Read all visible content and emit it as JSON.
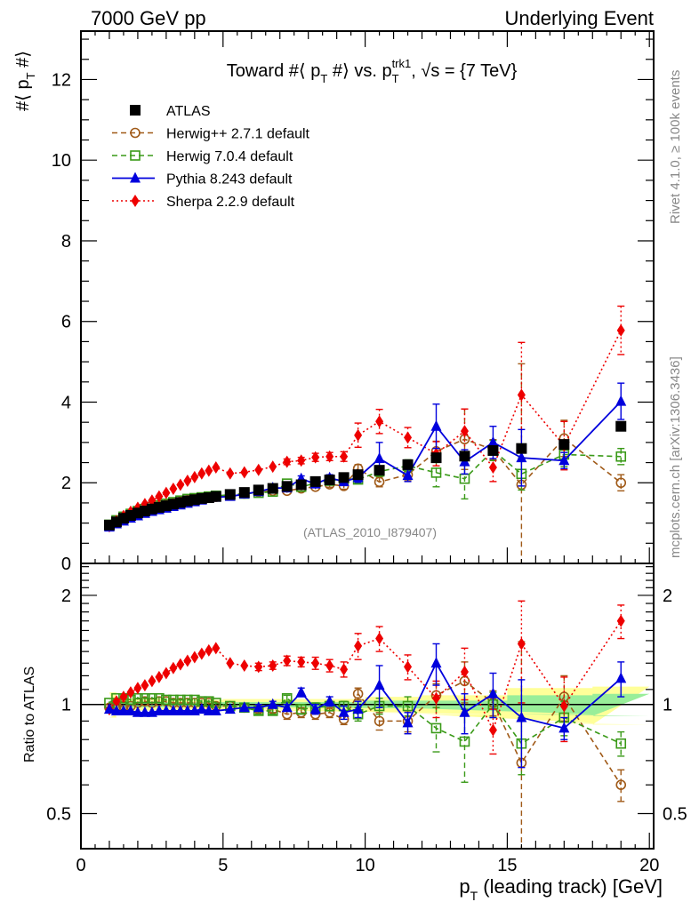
{
  "header": {
    "left": "7000 GeV pp",
    "right": "Underlying Event"
  },
  "side_labels": {
    "rivet": "Rivet 4.1.0, ≥ 100k events",
    "mcplots": "mcplots.cern.ch [arXiv:1306.3436]"
  },
  "chart_data": [
    {
      "type": "line",
      "panel": "main",
      "title": "Toward #⟨ p_T #⟩ vs. p_T^trk1, √s = {7 TeV}",
      "title_parts": {
        "a": "Toward #⟨ p",
        "b": "T",
        "c": " #⟩ vs. p",
        "d": "T",
        "e": "trk1",
        "f": ", √s = {7 TeV}"
      },
      "ylabel": "#⟨ p_T #⟩",
      "ylabel_parts": {
        "a": "#⟨ p",
        "b": "T",
        "c": " #⟩"
      },
      "xlim": [
        0,
        20.15
      ],
      "ylim": [
        0,
        13.2
      ],
      "yticks": [
        "0",
        "2",
        "4",
        "6",
        "8",
        "10",
        "12"
      ],
      "annotation": "(ATLAS_2010_I879407)",
      "legend_position": "top-left",
      "x": [
        1.0,
        1.25,
        1.5,
        1.75,
        2.0,
        2.25,
        2.5,
        2.75,
        3.0,
        3.25,
        3.5,
        3.75,
        4.0,
        4.25,
        4.5,
        4.75,
        5.25,
        5.75,
        6.25,
        6.75,
        7.25,
        7.75,
        8.25,
        8.75,
        9.25,
        9.75,
        10.5,
        11.5,
        12.5,
        13.5,
        14.5,
        15.5,
        17.0,
        19.0
      ],
      "series": [
        {
          "name": "ATLAS",
          "color": "#000000",
          "marker": "square-filled",
          "line": "none",
          "values": [
            0.95,
            1.03,
            1.12,
            1.19,
            1.25,
            1.3,
            1.35,
            1.39,
            1.43,
            1.47,
            1.51,
            1.55,
            1.58,
            1.61,
            1.63,
            1.66,
            1.71,
            1.76,
            1.82,
            1.86,
            1.91,
            1.95,
            2.03,
            2.07,
            2.13,
            2.2,
            2.31,
            2.45,
            2.62,
            2.66,
            2.8,
            2.85,
            2.95,
            3.4
          ]
        },
        {
          "name": "Herwig++ 2.7.1 default",
          "color": "#a05a18",
          "marker": "circle-open",
          "line": "dashed",
          "values": [
            0.93,
            1.02,
            1.11,
            1.18,
            1.26,
            1.32,
            1.37,
            1.42,
            1.46,
            1.49,
            1.53,
            1.57,
            1.6,
            1.62,
            1.64,
            1.65,
            1.69,
            1.73,
            1.77,
            1.8,
            1.8,
            1.86,
            1.9,
            1.96,
            1.92,
            2.35,
            2.02,
            2.2,
            2.78,
            3.08,
            2.82,
            1.95,
            3.1,
            2.0
          ],
          "err": [
            0.02,
            0.02,
            0.02,
            0.02,
            0.02,
            0.02,
            0.02,
            0.02,
            0.02,
            0.02,
            0.02,
            0.02,
            0.02,
            0.02,
            0.02,
            0.02,
            0.03,
            0.03,
            0.03,
            0.04,
            0.05,
            0.05,
            0.06,
            0.07,
            0.08,
            0.1,
            0.12,
            0.15,
            0.25,
            0.75,
            0.25,
            3.0,
            0.45,
            0.2
          ]
        },
        {
          "name": "Herwig 7.0.4 default",
          "color": "#3a9a18",
          "marker": "square-open",
          "line": "dashed",
          "values": [
            0.96,
            1.07,
            1.16,
            1.23,
            1.3,
            1.35,
            1.4,
            1.44,
            1.48,
            1.52,
            1.56,
            1.6,
            1.62,
            1.64,
            1.66,
            1.68,
            1.7,
            1.73,
            1.75,
            1.78,
            1.98,
            1.9,
            1.99,
            2.05,
            2.1,
            2.08,
            2.28,
            2.42,
            2.25,
            2.1,
            2.8,
            2.22,
            2.7,
            2.65
          ],
          "err": [
            0.02,
            0.02,
            0.02,
            0.02,
            0.02,
            0.02,
            0.02,
            0.02,
            0.02,
            0.02,
            0.02,
            0.02,
            0.02,
            0.02,
            0.02,
            0.02,
            0.03,
            0.03,
            0.03,
            0.04,
            0.05,
            0.05,
            0.06,
            0.07,
            0.08,
            0.1,
            0.12,
            0.15,
            0.35,
            0.5,
            0.25,
            0.4,
            0.3,
            0.2
          ]
        },
        {
          "name": "Pythia 8.243 default",
          "color": "#0000dd",
          "marker": "triangle-filled",
          "line": "solid",
          "values": [
            0.9,
            0.98,
            1.05,
            1.12,
            1.18,
            1.24,
            1.29,
            1.33,
            1.37,
            1.41,
            1.45,
            1.49,
            1.53,
            1.57,
            1.61,
            1.64,
            1.66,
            1.72,
            1.78,
            1.87,
            1.87,
            2.1,
            1.97,
            2.12,
            2.03,
            2.13,
            2.6,
            2.18,
            3.4,
            2.52,
            3.0,
            2.62,
            2.55,
            4.02
          ],
          "err": [
            0.02,
            0.02,
            0.02,
            0.02,
            0.02,
            0.02,
            0.02,
            0.02,
            0.02,
            0.02,
            0.02,
            0.02,
            0.02,
            0.02,
            0.02,
            0.02,
            0.03,
            0.03,
            0.03,
            0.04,
            0.05,
            0.07,
            0.07,
            0.08,
            0.1,
            0.12,
            0.4,
            0.15,
            0.55,
            0.3,
            0.4,
            0.7,
            0.2,
            0.45
          ]
        },
        {
          "name": "Sherpa 2.2.9 default",
          "color": "#ee0000",
          "marker": "diamond-filled",
          "line": "dotted",
          "values": [
            0.92,
            1.05,
            1.18,
            1.28,
            1.38,
            1.47,
            1.56,
            1.66,
            1.75,
            1.85,
            1.95,
            2.05,
            2.14,
            2.23,
            2.3,
            2.38,
            2.23,
            2.26,
            2.32,
            2.4,
            2.52,
            2.55,
            2.63,
            2.65,
            2.65,
            3.18,
            3.52,
            3.12,
            2.72,
            3.28,
            2.38,
            4.18,
            2.92,
            5.78
          ],
          "err": [
            0.02,
            0.02,
            0.02,
            0.02,
            0.02,
            0.02,
            0.02,
            0.02,
            0.02,
            0.02,
            0.03,
            0.03,
            0.03,
            0.03,
            0.03,
            0.03,
            0.04,
            0.04,
            0.05,
            0.06,
            0.07,
            0.08,
            0.1,
            0.1,
            0.12,
            0.3,
            0.3,
            0.25,
            0.3,
            0.55,
            0.35,
            1.3,
            0.6,
            0.6
          ]
        }
      ]
    },
    {
      "type": "line",
      "panel": "ratio",
      "ylabel": "Ratio to ATLAS",
      "xlabel": "p_T (leading track) [GeV]",
      "xlabel_parts": {
        "a": "p",
        "b": "T",
        "c": " (leading track) [GeV]"
      },
      "yscale": "log",
      "ylim": [
        0.4,
        2.45
      ],
      "yticks": [
        "0.5",
        "1",
        "2"
      ],
      "xticks": [
        "0",
        "5",
        "10",
        "15",
        "20"
      ],
      "reference": 1.0,
      "band_inner": [
        [
          1.0,
          0.03
        ],
        [
          1.25,
          0.02
        ],
        [
          1.5,
          0.02
        ],
        [
          3,
          0.015
        ],
        [
          5,
          0.015
        ],
        [
          10,
          0.025
        ],
        [
          12,
          0.025
        ],
        [
          15,
          0.06
        ],
        [
          18,
          0.07
        ],
        [
          20,
          0.07
        ]
      ],
      "band_outer": [
        [
          1.0,
          0.08
        ],
        [
          1.25,
          0.04
        ],
        [
          1.5,
          0.04
        ],
        [
          3,
          0.03
        ],
        [
          5,
          0.035
        ],
        [
          10,
          0.05
        ],
        [
          12,
          0.06
        ],
        [
          15,
          0.11
        ],
        [
          18,
          0.12
        ],
        [
          20,
          0.12
        ]
      ],
      "series": [
        {
          "name": "Herwig++ 2.7.1 default",
          "values": [
            0.98,
            0.99,
            0.99,
            0.99,
            1.01,
            1.02,
            1.01,
            1.02,
            1.02,
            1.01,
            1.01,
            1.01,
            1.01,
            1.01,
            1.01,
            0.99,
            0.99,
            0.98,
            0.97,
            0.97,
            0.94,
            0.95,
            0.94,
            0.95,
            0.91,
            1.07,
            0.9,
            0.9,
            1.06,
            1.16,
            1.01,
            0.69,
            1.05,
            0.6
          ],
          "err": [
            0.01,
            0.01,
            0.01,
            0.01,
            0.01,
            0.01,
            0.01,
            0.01,
            0.01,
            0.01,
            0.01,
            0.01,
            0.01,
            0.01,
            0.01,
            0.01,
            0.01,
            0.01,
            0.02,
            0.02,
            0.03,
            0.03,
            0.03,
            0.03,
            0.03,
            0.04,
            0.05,
            0.06,
            0.08,
            0.15,
            0.08,
            0.8,
            0.15,
            0.06
          ]
        },
        {
          "name": "Herwig 7.0.4 default",
          "values": [
            1.01,
            1.04,
            1.04,
            1.03,
            1.04,
            1.04,
            1.04,
            1.04,
            1.03,
            1.03,
            1.03,
            1.03,
            1.03,
            1.02,
            1.02,
            1.01,
            0.99,
            0.98,
            0.96,
            0.96,
            1.04,
            0.97,
            0.98,
            0.99,
            0.99,
            0.94,
            0.99,
            0.99,
            0.86,
            0.79,
            1.0,
            0.78,
            0.92,
            0.78
          ],
          "err": [
            0.01,
            0.01,
            0.01,
            0.01,
            0.01,
            0.01,
            0.01,
            0.01,
            0.01,
            0.01,
            0.01,
            0.01,
            0.01,
            0.01,
            0.01,
            0.01,
            0.01,
            0.02,
            0.02,
            0.02,
            0.02,
            0.03,
            0.03,
            0.03,
            0.03,
            0.04,
            0.05,
            0.06,
            0.12,
            0.18,
            0.08,
            0.14,
            0.1,
            0.06
          ]
        },
        {
          "name": "Pythia 8.243 default",
          "values": [
            0.97,
            0.96,
            0.96,
            0.96,
            0.95,
            0.95,
            0.95,
            0.96,
            0.96,
            0.96,
            0.96,
            0.96,
            0.96,
            0.97,
            0.96,
            0.96,
            0.97,
            0.98,
            0.98,
            1.0,
            0.98,
            1.08,
            0.97,
            1.02,
            0.95,
            0.97,
            1.13,
            0.89,
            1.3,
            0.95,
            1.07,
            0.92,
            0.86,
            1.18
          ],
          "err": [
            0.01,
            0.01,
            0.01,
            0.01,
            0.01,
            0.01,
            0.01,
            0.01,
            0.01,
            0.01,
            0.01,
            0.01,
            0.01,
            0.01,
            0.01,
            0.01,
            0.01,
            0.01,
            0.02,
            0.02,
            0.02,
            0.03,
            0.03,
            0.03,
            0.04,
            0.05,
            0.15,
            0.06,
            0.17,
            0.12,
            0.15,
            0.25,
            0.06,
            0.13
          ]
        },
        {
          "name": "Sherpa 2.2.9 default",
          "values": [
            0.97,
            1.02,
            1.05,
            1.08,
            1.11,
            1.13,
            1.16,
            1.19,
            1.22,
            1.26,
            1.29,
            1.32,
            1.35,
            1.38,
            1.41,
            1.43,
            1.3,
            1.28,
            1.27,
            1.28,
            1.32,
            1.31,
            1.3,
            1.28,
            1.25,
            1.45,
            1.52,
            1.27,
            1.04,
            1.23,
            0.85,
            1.47,
            0.99,
            1.7
          ],
          "err": [
            0.01,
            0.01,
            0.01,
            0.01,
            0.01,
            0.01,
            0.01,
            0.01,
            0.01,
            0.01,
            0.01,
            0.01,
            0.01,
            0.01,
            0.01,
            0.01,
            0.02,
            0.02,
            0.03,
            0.03,
            0.04,
            0.04,
            0.05,
            0.05,
            0.06,
            0.12,
            0.12,
            0.1,
            0.12,
            0.2,
            0.12,
            0.46,
            0.2,
            0.18
          ]
        }
      ]
    }
  ]
}
